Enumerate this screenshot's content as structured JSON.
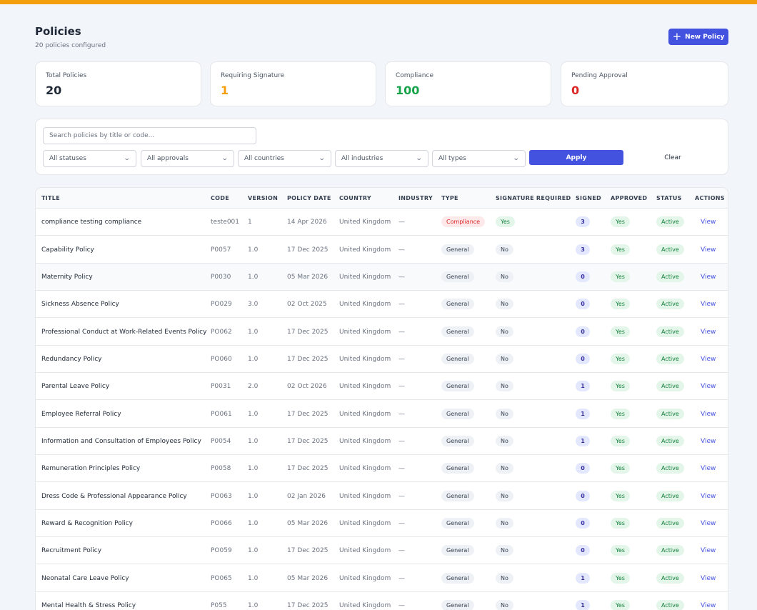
{
  "header": {
    "title": "Policies",
    "subtitle": "20 policies configured",
    "new_button": "New Policy"
  },
  "stats": [
    {
      "label": "Total Policies",
      "value": "20",
      "color": "#1f2937"
    },
    {
      "label": "Requiring Signature",
      "value": "1",
      "color": "#f59e0b"
    },
    {
      "label": "Compliance",
      "value": "100",
      "color": "#16a34a"
    },
    {
      "label": "Pending Approval",
      "value": "0",
      "color": "#dc2626"
    }
  ],
  "filters": {
    "search_placeholder": "Search policies by title or code...",
    "statuses": "All statuses",
    "approvals": "All approvals",
    "countries": "All countries",
    "industries": "All industries",
    "types": "All types",
    "apply": "Apply",
    "clear": "Clear"
  },
  "table": {
    "headers": [
      "TITLE",
      "CODE",
      "VERSION",
      "POLICY DATE",
      "COUNTRY",
      "INDUSTRY",
      "TYPE",
      "SIGNATURE REQUIRED",
      "SIGNED",
      "APPROVED",
      "STATUS",
      "ACTIONS"
    ],
    "rows": [
      {
        "title": "compliance testing compliance",
        "code": "teste001",
        "version": "1",
        "date": "14 Apr 2026",
        "country": "United Kingdom",
        "industry": "—",
        "type": "Compliance",
        "sig": "Yes",
        "signed": "3",
        "approved": "Yes",
        "status": "Active",
        "action": "View"
      },
      {
        "title": "Capability Policy",
        "code": "P0057",
        "version": "1.0",
        "date": "17 Dec 2025",
        "country": "United Kingdom",
        "industry": "—",
        "type": "General",
        "sig": "No",
        "signed": "3",
        "approved": "Yes",
        "status": "Active",
        "action": "View"
      },
      {
        "title": "Maternity Policy",
        "code": "P0030",
        "version": "1.0",
        "date": "05 Mar 2026",
        "country": "United Kingdom",
        "industry": "—",
        "type": "General",
        "sig": "No",
        "signed": "0",
        "approved": "Yes",
        "status": "Active",
        "action": "View"
      },
      {
        "title": "Sickness Absence Policy",
        "code": "PO029",
        "version": "3.0",
        "date": "02 Oct 2025",
        "country": "United Kingdom",
        "industry": "—",
        "type": "General",
        "sig": "No",
        "signed": "0",
        "approved": "Yes",
        "status": "Active",
        "action": "View"
      },
      {
        "title": "Professional Conduct at Work-Related Events Policy",
        "code": "PO062",
        "version": "1.0",
        "date": "17 Dec 2025",
        "country": "United Kingdom",
        "industry": "—",
        "type": "General",
        "sig": "No",
        "signed": "0",
        "approved": "Yes",
        "status": "Active",
        "action": "View"
      },
      {
        "title": "Redundancy Policy",
        "code": "PO060",
        "version": "1.0",
        "date": "17 Dec 2025",
        "country": "United Kingdom",
        "industry": "—",
        "type": "General",
        "sig": "No",
        "signed": "0",
        "approved": "Yes",
        "status": "Active",
        "action": "View"
      },
      {
        "title": "Parental Leave Policy",
        "code": "P0031",
        "version": "2.0",
        "date": "02 Oct 2026",
        "country": "United Kingdom",
        "industry": "—",
        "type": "General",
        "sig": "No",
        "signed": "1",
        "approved": "Yes",
        "status": "Active",
        "action": "View"
      },
      {
        "title": "Employee Referral Policy",
        "code": "PO061",
        "version": "1.0",
        "date": "17 Dec 2025",
        "country": "United Kingdom",
        "industry": "—",
        "type": "General",
        "sig": "No",
        "signed": "1",
        "approved": "Yes",
        "status": "Active",
        "action": "View"
      },
      {
        "title": "Information and Consultation of Employees Policy",
        "code": "P0054",
        "version": "1.0",
        "date": "17 Dec 2025",
        "country": "United Kingdom",
        "industry": "—",
        "type": "General",
        "sig": "No",
        "signed": "1",
        "approved": "Yes",
        "status": "Active",
        "action": "View"
      },
      {
        "title": "Remuneration Principles Policy",
        "code": "P0058",
        "version": "1.0",
        "date": "17 Dec 2025",
        "country": "United Kingdom",
        "industry": "—",
        "type": "General",
        "sig": "No",
        "signed": "0",
        "approved": "Yes",
        "status": "Active",
        "action": "View"
      },
      {
        "title": "Dress Code & Professional Appearance Policy",
        "code": "PO063",
        "version": "1.0",
        "date": "02 Jan 2026",
        "country": "United Kingdom",
        "industry": "—",
        "type": "General",
        "sig": "No",
        "signed": "0",
        "approved": "Yes",
        "status": "Active",
        "action": "View"
      },
      {
        "title": "Reward & Recognition Policy",
        "code": "PO066",
        "version": "1.0",
        "date": "05 Mar 2026",
        "country": "United Kingdom",
        "industry": "—",
        "type": "General",
        "sig": "No",
        "signed": "0",
        "approved": "Yes",
        "status": "Active",
        "action": "View"
      },
      {
        "title": "Recruitment Policy",
        "code": "PO059",
        "version": "1.0",
        "date": "17 Dec 2025",
        "country": "United Kingdom",
        "industry": "—",
        "type": "General",
        "sig": "No",
        "signed": "0",
        "approved": "Yes",
        "status": "Active",
        "action": "View"
      },
      {
        "title": "Neonatal Care Leave Policy",
        "code": "PO065",
        "version": "1.0",
        "date": "05 Mar 2026",
        "country": "United Kingdom",
        "industry": "—",
        "type": "General",
        "sig": "No",
        "signed": "1",
        "approved": "Yes",
        "status": "Active",
        "action": "View"
      },
      {
        "title": "Mental Health & Stress Policy",
        "code": "P055",
        "version": "1.0",
        "date": "17 Dec 2025",
        "country": "United Kingdom",
        "industry": "—",
        "type": "General",
        "sig": "No",
        "signed": "1",
        "approved": "Yes",
        "status": "Active",
        "action": "View"
      }
    ]
  }
}
